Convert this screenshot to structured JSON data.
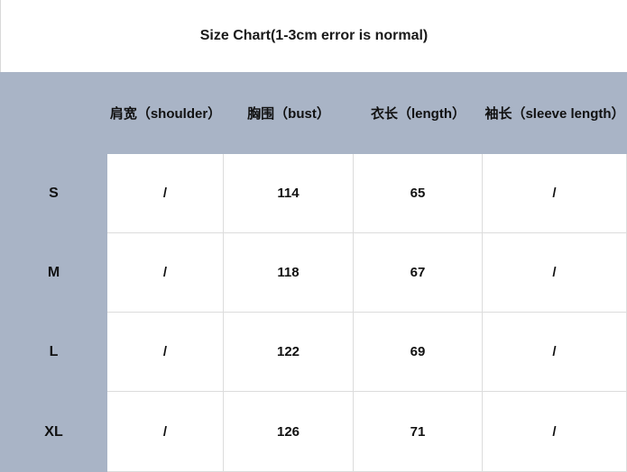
{
  "header": {
    "title": "Size Chart(1-3cm error is normal)"
  },
  "colors": {
    "table_bg": "#a9b4c6",
    "cell_bg": "#ffffff",
    "grid_line": "#dcdcdc",
    "text": "#111111"
  },
  "chart_data": {
    "type": "table",
    "title": "Size Chart(1-3cm error is normal)",
    "columns": [
      "",
      "肩宽（shoulder）",
      "胸围（bust）",
      "衣长（length）",
      "袖长（sleeve length）"
    ],
    "rows": [
      {
        "size": "S",
        "values": [
          "/",
          "114",
          "65",
          "/"
        ]
      },
      {
        "size": "M",
        "values": [
          "/",
          "118",
          "67",
          "/"
        ]
      },
      {
        "size": "L",
        "values": [
          "/",
          "122",
          "69",
          "/"
        ]
      },
      {
        "size": "XL",
        "values": [
          "/",
          "126",
          "71",
          "/"
        ]
      }
    ],
    "layout_hints": {
      "header_row_background": "#a9b4c6",
      "label_column_background": "#a9b4c6",
      "data_cell_background": "#ffffff",
      "grid": "light-gray lines between white data cells only",
      "units": "cm"
    }
  }
}
